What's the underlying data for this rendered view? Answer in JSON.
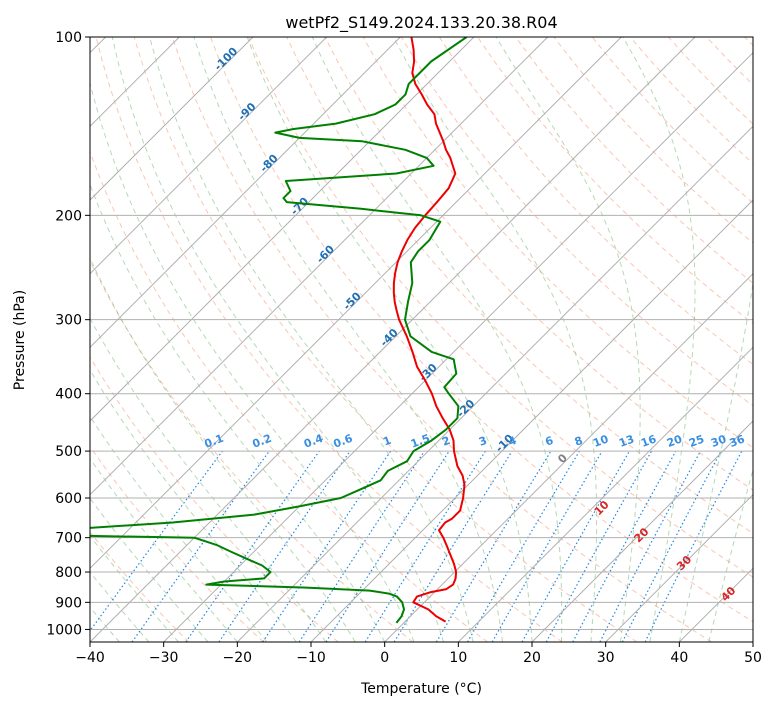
{
  "chart_data": {
    "type": "line",
    "subtype": "skew-t log-p diagram",
    "title": "wetPf2_S149.2024.133.20.38.R04",
    "xlabel": "Temperature (°C)",
    "ylabel": "Pressure (hPa)",
    "xlim": [
      -40,
      50
    ],
    "ylim": [
      1050,
      100
    ],
    "y_scale": "log",
    "grid": true,
    "x_ticks": [
      -40,
      -30,
      -20,
      -10,
      0,
      10,
      20,
      30,
      40,
      50
    ],
    "y_ticks": [
      1000,
      900,
      800,
      700,
      600,
      500,
      400,
      300,
      200,
      100
    ],
    "colors": {
      "temperature": "#ee0000",
      "dewpoint": "#008000",
      "isotherm_label": "#1f6fb4",
      "mixing_ratio_label": "#3a8fe0",
      "moist_adiabat_label": "#d62728",
      "zero_label": "#808080"
    },
    "series": [
      {
        "name": "",
        "color": "#ee0000",
        "p": [
          970,
          950,
          925,
          900,
          880,
          865,
          855,
          840,
          820,
          800,
          775,
          750,
          720,
          700,
          680,
          660,
          650,
          630,
          600,
          570,
          550,
          530,
          500,
          480,
          460,
          440,
          420,
          400,
          380,
          360,
          340,
          320,
          300,
          290,
          280,
          270,
          260,
          250,
          240,
          230,
          220,
          210,
          200,
          190,
          180,
          170,
          160,
          155,
          150,
          140,
          135,
          130,
          125,
          120,
          115,
          110,
          105,
          100
        ],
        "t": [
          5.5,
          3.5,
          1.5,
          -1.5,
          -1.8,
          -0.5,
          1.2,
          1.5,
          1.0,
          0.2,
          -1.2,
          -2.8,
          -4.8,
          -6.2,
          -7.8,
          -8.0,
          -7.6,
          -7.6,
          -8.9,
          -10.5,
          -12.0,
          -14.0,
          -16.5,
          -18.0,
          -20.0,
          -22.5,
          -25.0,
          -27.3,
          -30.0,
          -33.0,
          -35.6,
          -38.5,
          -41.8,
          -43.3,
          -44.8,
          -46.2,
          -47.5,
          -48.7,
          -49.8,
          -50.7,
          -51.5,
          -52.1,
          -52.4,
          -52.6,
          -52.9,
          -54.0,
          -56.8,
          -58.5,
          -60.0,
          -63.4,
          -64.9,
          -67.2,
          -69.3,
          -71.6,
          -73.5,
          -74.8,
          -76.5,
          -78.5
        ]
      },
      {
        "name": "",
        "color": "#008000",
        "p": [
          975,
          950,
          925,
          900,
          880,
          870,
          860,
          850,
          840,
          830,
          820,
          800,
          780,
          760,
          740,
          720,
          700,
          690,
          680,
          660,
          640,
          620,
          600,
          580,
          560,
          540,
          520,
          500,
          480,
          460,
          440,
          420,
          400,
          390,
          370,
          350,
          340,
          320,
          300,
          280,
          260,
          240,
          230,
          220,
          205,
          200,
          195,
          190,
          187,
          182,
          175,
          170,
          165,
          160,
          155,
          150,
          148,
          145,
          143,
          140,
          135,
          130,
          125,
          120,
          110,
          100
        ],
        "t": [
          -1.0,
          -1.2,
          -1.8,
          -3.0,
          -4.5,
          -6.0,
          -9.0,
          -18.0,
          -32.0,
          -30.0,
          -25.0,
          -25.0,
          -27.0,
          -30.0,
          -33.0,
          -36.0,
          -40.0,
          -70.0,
          -60.0,
          -45.0,
          -35.0,
          -30.0,
          -25.5,
          -24.0,
          -22.5,
          -22.8,
          -21.5,
          -22.0,
          -21.0,
          -20.5,
          -20.5,
          -22.0,
          -25.0,
          -26.5,
          -26.7,
          -29.0,
          -33.0,
          -38.0,
          -41.0,
          -43.0,
          -45.0,
          -48.0,
          -48.5,
          -48.5,
          -49.5,
          -53.0,
          -62.0,
          -73.0,
          -74.0,
          -74.0,
          -76.0,
          -62.0,
          -58.0,
          -60.0,
          -64.0,
          -71.0,
          -80.0,
          -84.0,
          -82.0,
          -77.0,
          -73.0,
          -71.5,
          -71.5,
          -72.5,
          -72.5,
          -71.0
        ]
      }
    ],
    "isotherm_labels": [
      "-100",
      "-90",
      "-80",
      "-70",
      "-60",
      "-50",
      "-40",
      "-30",
      "-20",
      "-10"
    ],
    "isotherm_label_p": [
      110,
      135,
      165,
      195,
      235,
      282,
      325,
      372,
      428,
      490
    ],
    "isotherm_label_t": [
      -100,
      -90,
      -80,
      -70,
      -60,
      -50,
      -40,
      -30,
      -20,
      -10
    ],
    "mixing_ratio_labels": [
      "0.1",
      "0.2",
      "0.4",
      "0.6",
      "1",
      "1.5",
      "2",
      "3",
      "4",
      "6",
      "8",
      "10",
      "13",
      "16",
      "20",
      "25",
      "30",
      "36"
    ],
    "mixing_ratio_label_t": [
      -23.0,
      -16.5,
      -9.5,
      -5.5,
      0.5,
      5.0,
      8.5,
      13.5,
      17.5,
      22.5,
      26.5,
      29.5,
      33.0,
      36.0,
      39.5,
      42.5,
      45.5,
      48.0
    ],
    "moist_adiabat_labels": [
      "0",
      "10",
      "20",
      "30",
      "40"
    ],
    "moist_adiabat_label_x": [
      24.5,
      29.8,
      35.2,
      41.0,
      47.0
    ],
    "moist_adiabat_label_p": [
      520,
      630,
      700,
      780,
      880
    ]
  }
}
